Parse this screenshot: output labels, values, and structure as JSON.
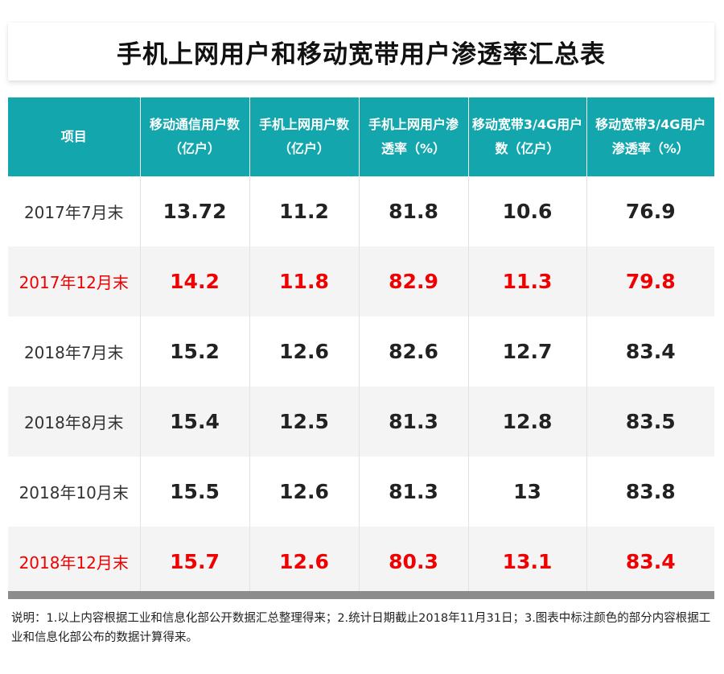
{
  "title": "手机上网用户和移动宽带用户渗透率汇总表",
  "table": {
    "headers": [
      "项目",
      "移动通信用户数（亿户）",
      "手机上网用户数（亿户）",
      "手机上网用户渗透率（%）",
      "移动宽带3/4G用户数（亿户）",
      "移动宽带3/4G用户渗透率（%）"
    ],
    "rows": [
      {
        "label": "2017年7月末",
        "values": [
          "13.72",
          "11.2",
          "81.8",
          "10.6",
          "76.9"
        ]
      },
      {
        "label": "2017年12月末",
        "values": [
          "14.2",
          "11.8",
          "82.9",
          "11.3",
          "79.8"
        ]
      },
      {
        "label": "2018年7月末",
        "values": [
          "15.2",
          "12.6",
          "82.6",
          "12.7",
          "83.4"
        ]
      },
      {
        "label": "2018年8月末",
        "values": [
          "15.4",
          "12.5",
          "81.3",
          "12.8",
          "83.5"
        ]
      },
      {
        "label": "2018年10月末",
        "values": [
          "15.5",
          "12.6",
          "81.3",
          "13",
          "83.8"
        ]
      },
      {
        "label": "2018年12月末",
        "values": [
          "15.7",
          "12.6",
          "80.3",
          "13.1",
          "83.4"
        ]
      }
    ]
  },
  "note": "说明：1.以上内容根据工业和信息化部公开数据汇总整理得来；2.统计日期截止2018年11月31日；3.图表中标注颜色的部分内容根据工业和信息化部公布的数据计算得来。",
  "colors": {
    "header_bg": "#13a7ad",
    "highlight_text": "#f00000",
    "stripe_bg": "#f4f4f4",
    "footer_bar": "#8c8c8c"
  }
}
